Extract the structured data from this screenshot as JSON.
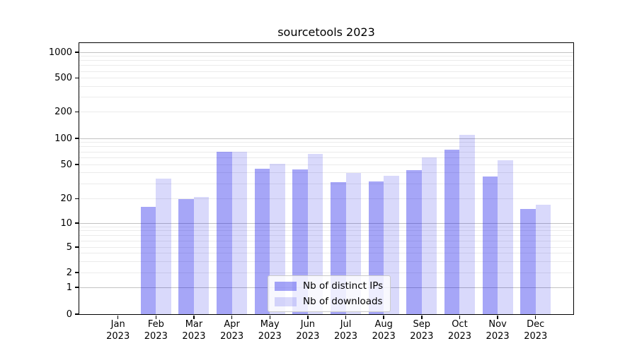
{
  "title": "sourcetools 2023",
  "chart_data": {
    "type": "bar",
    "title": "sourcetools 2023",
    "categories": [
      "Jan 2023",
      "Feb 2023",
      "Mar 2023",
      "Apr 2023",
      "May 2023",
      "Jun 2023",
      "Jul 2023",
      "Aug 2023",
      "Sep 2023",
      "Oct 2023",
      "Nov 2023",
      "Dec 2023"
    ],
    "series": [
      {
        "name": "Nb of distinct IPs",
        "color": "rgba(21,21,233,0.38)",
        "values": [
          0,
          16,
          20,
          70,
          45,
          44,
          31,
          32,
          43,
          74,
          36,
          15
        ]
      },
      {
        "name": "Nb of downloads",
        "color": "rgba(21,21,233,0.16)",
        "values": [
          0,
          34,
          21,
          70,
          51,
          66,
          40,
          37,
          60,
          110,
          56,
          17
        ]
      }
    ],
    "yscale": "symlog",
    "yticks": [
      0,
      1,
      2,
      5,
      10,
      20,
      50,
      100,
      200,
      500,
      1000
    ],
    "ylim": [
      0,
      1278
    ],
    "xlabel": "",
    "ylabel": "",
    "grid": true,
    "legend_position": "lower center"
  },
  "legend": {
    "items": [
      "Nb of distinct IPs",
      "Nb of downloads"
    ]
  },
  "colors": {
    "bar_ips_solid": "#a6a6f7",
    "bar_downloads_solid": "#dadafb",
    "grid_major": "#c2c2c2",
    "grid_minor": "#ebebeb",
    "spine": "#000000",
    "legend_border": "#cbcbcb"
  }
}
